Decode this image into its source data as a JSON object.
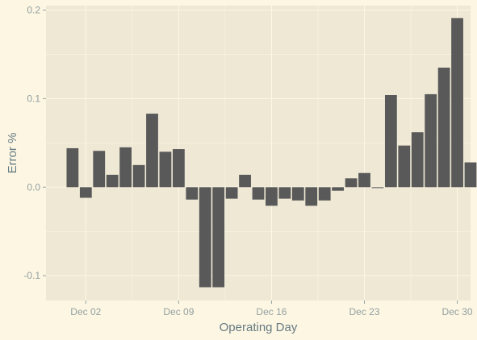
{
  "chart_data": {
    "type": "bar",
    "title": "",
    "xlabel": "Operating Day",
    "ylabel": "Error %",
    "ylim": [
      -0.128,
      0.205
    ],
    "yticks": [
      -0.1,
      0.0,
      0.1,
      0.2
    ],
    "ytick_labels": [
      "-0.1",
      "0.0",
      "0.1",
      "0.2"
    ],
    "xticks": [
      "Dec 02",
      "Dec 09",
      "Dec 16",
      "Dec 23",
      "Dec 30"
    ],
    "x_range": [
      "Nov 29",
      "Dec 31"
    ],
    "grid": true,
    "bar_color": "#595959",
    "panel_color": "#eee8d5",
    "background_color": "#fdf6e3",
    "gridline_color": "#fdf6e3",
    "categories": [
      "Dec 01",
      "Dec 02",
      "Dec 03",
      "Dec 04",
      "Dec 05",
      "Dec 06",
      "Dec 07",
      "Dec 08",
      "Dec 09",
      "Dec 10",
      "Dec 11",
      "Dec 12",
      "Dec 13",
      "Dec 14",
      "Dec 15",
      "Dec 16",
      "Dec 17",
      "Dec 18",
      "Dec 19",
      "Dec 20",
      "Dec 21",
      "Dec 22",
      "Dec 23",
      "Dec 24",
      "Dec 25",
      "Dec 26",
      "Dec 27",
      "Dec 28",
      "Dec 29",
      "Dec 30",
      "Dec 31"
    ],
    "values": [
      0.044,
      -0.012,
      0.041,
      0.014,
      0.045,
      0.025,
      0.083,
      0.04,
      0.043,
      -0.014,
      -0.113,
      -0.113,
      -0.013,
      0.014,
      -0.014,
      -0.021,
      -0.013,
      -0.015,
      -0.021,
      -0.015,
      -0.004,
      0.01,
      0.016,
      -0.001,
      0.104,
      0.047,
      0.062,
      0.105,
      0.135,
      0.191,
      0.028
    ]
  }
}
